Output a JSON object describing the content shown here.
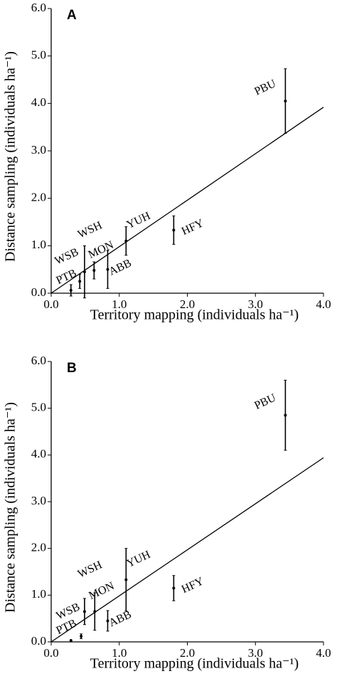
{
  "chart_data": [
    {
      "type": "scatter",
      "panel_label": "A",
      "x_label": "Territory mapping (individuals ha⁻¹)",
      "y_label": "Distance sampling (individuals ha⁻¹)",
      "xlim": [
        0,
        4
      ],
      "ylim": [
        0,
        6
      ],
      "xticks": [
        {
          "value": 0,
          "label": "0.0"
        },
        {
          "value": 1,
          "label": "1.0"
        },
        {
          "value": 2,
          "label": "2.0"
        },
        {
          "value": 3,
          "label": "3.0"
        },
        {
          "value": 4,
          "label": "4.0"
        }
      ],
      "yticks": [
        {
          "value": 0,
          "label": "0.0"
        },
        {
          "value": 1,
          "label": "1.0"
        },
        {
          "value": 2,
          "label": "2.0"
        },
        {
          "value": 3,
          "label": "3.0"
        },
        {
          "value": 4,
          "label": "4.0"
        },
        {
          "value": 5,
          "label": "5.0"
        },
        {
          "value": 6,
          "label": "6.0"
        }
      ],
      "point_labels": [
        "PTB",
        "WSB",
        "WSH",
        "MON",
        "ABB",
        "YUH",
        "HFY",
        "PBU"
      ],
      "x": [
        0.29,
        0.42,
        0.49,
        0.63,
        0.83,
        1.1,
        1.8,
        3.44
      ],
      "y": [
        0.06,
        0.25,
        0.45,
        0.48,
        0.5,
        1.1,
        1.33,
        4.05
      ],
      "errors": [
        0.12,
        0.15,
        0.55,
        0.18,
        0.4,
        0.3,
        0.3,
        0.68
      ],
      "line": {
        "x": [
          0,
          4
        ],
        "y": [
          0,
          3.92
        ]
      }
    },
    {
      "type": "scatter",
      "panel_label": "B",
      "x_label": "Territory mapping (individuals ha⁻¹)",
      "y_label": "Distance sampling (individuals ha⁻¹)",
      "xlim": [
        0,
        4
      ],
      "ylim": [
        0,
        6
      ],
      "xticks": [
        {
          "value": 0,
          "label": "0.0"
        },
        {
          "value": 1,
          "label": "1.0"
        },
        {
          "value": 2,
          "label": "2.0"
        },
        {
          "value": 3,
          "label": "3.0"
        },
        {
          "value": 4,
          "label": "4.0"
        }
      ],
      "yticks": [
        {
          "value": 0,
          "label": "0.0"
        },
        {
          "value": 1,
          "label": "1.0"
        },
        {
          "value": 2,
          "label": "2.0"
        },
        {
          "value": 3,
          "label": "3.0"
        },
        {
          "value": 4,
          "label": "4.0"
        },
        {
          "value": 5,
          "label": "5.0"
        },
        {
          "value": 6,
          "label": "6.0"
        }
      ],
      "point_labels": [
        "PTB",
        "WSB",
        "WSH",
        "MON",
        "ABB",
        "YUH",
        "HFY",
        "PBU"
      ],
      "x": [
        0.29,
        0.44,
        0.49,
        0.64,
        0.83,
        1.1,
        1.8,
        3.44
      ],
      "y": [
        0.03,
        0.12,
        0.65,
        0.65,
        0.45,
        1.33,
        1.15,
        4.85
      ],
      "errors": [
        0,
        0.05,
        0.28,
        0.4,
        0.22,
        0.67,
        0.27,
        0.75
      ],
      "line": {
        "x": [
          0,
          4
        ],
        "y": [
          0,
          3.94
        ]
      }
    }
  ]
}
